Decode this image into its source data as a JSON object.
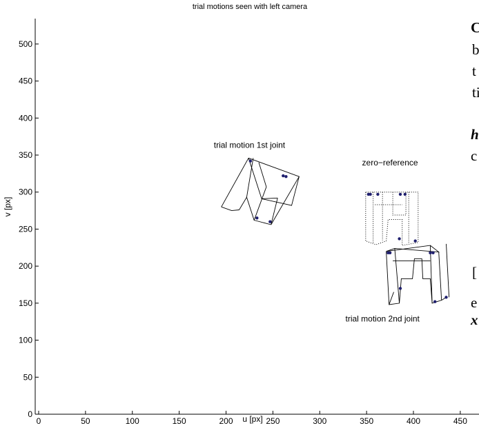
{
  "chart_data": {
    "type": "line",
    "title": "trial motions seen with left camera",
    "xlabel": "u [px]",
    "ylabel": "v [px]",
    "xlim": [
      0,
      460
    ],
    "ylim": [
      0,
      510
    ],
    "xticks": [
      0,
      50,
      100,
      150,
      200,
      250,
      300,
      350,
      400,
      450
    ],
    "yticks": [
      0,
      50,
      100,
      150,
      200,
      250,
      300,
      350,
      400,
      450,
      500
    ],
    "grid": false,
    "annotations": [
      {
        "text": "trial motion 1st joint",
        "x": 225,
        "y": 360
      },
      {
        "text": "zero−reference",
        "x": 375,
        "y": 336
      },
      {
        "text": "trial motion 2nd joint",
        "x": 367,
        "y": 125
      }
    ],
    "series": [
      {
        "style": "solid",
        "lines": [
          [
            [
              224,
              346
            ],
            [
              278,
              321
            ],
            [
              270,
              282
            ],
            [
              238,
              291
            ],
            [
              224,
              346
            ]
          ],
          [
            [
              229,
              346
            ],
            [
              222,
              293
            ],
            [
              214,
              276
            ]
          ],
          [
            [
              195,
              280
            ],
            [
              206,
              275
            ],
            [
              214,
              276
            ]
          ],
          [
            [
              195,
              280
            ],
            [
              224,
              346
            ]
          ],
          [
            [
              222,
              293
            ],
            [
              230,
              262
            ]
          ],
          [
            [
              243,
              307
            ],
            [
              230,
              262
            ],
            [
              248,
              256
            ]
          ],
          [
            [
              255,
              292
            ],
            [
              248,
              256
            ]
          ],
          [
            [
              248,
              256
            ],
            [
              278,
              321
            ]
          ],
          [
            [
              238,
              291
            ],
            [
              255,
              292
            ]
          ],
          [
            [
              235,
              340
            ],
            [
              243,
              307
            ]
          ]
        ],
        "points": [
          [
            226,
            342
          ],
          [
            261,
            322
          ],
          [
            264,
            321
          ],
          [
            233,
            265
          ],
          [
            247,
            260
          ]
        ]
      },
      {
        "style": "dotted",
        "lines": [
          [
            [
              349,
              300
            ],
            [
              405,
              300
            ],
            [
              405,
              232
            ],
            [
              388,
              228
            ],
            [
              388,
              263
            ],
            [
              373,
              263
            ],
            [
              371,
              234
            ],
            [
              360,
              229
            ],
            [
              349,
              234
            ],
            [
              349,
              300
            ]
          ],
          [
            [
              357,
              300
            ],
            [
              357,
              231
            ]
          ],
          [
            [
              378,
              300
            ],
            [
              378,
              269
            ],
            [
              392,
              269
            ],
            [
              392,
              300
            ]
          ],
          [
            [
              359,
              283
            ],
            [
              378,
              283
            ],
            [
              388,
              283
            ]
          ],
          [
            [
              395,
              300
            ],
            [
              395,
              232
            ]
          ],
          [
            [
              367,
              300
            ],
            [
              367,
              235
            ]
          ]
        ],
        "points": [
          [
            352,
            297
          ],
          [
            354,
            297
          ],
          [
            362,
            297
          ],
          [
            386,
            297
          ],
          [
            391,
            297
          ],
          [
            385,
            237
          ],
          [
            402,
            234
          ]
        ]
      },
      {
        "style": "solid",
        "lines": [
          [
            [
              371,
              220
            ],
            [
              418,
              228
            ],
            [
              427,
              219
            ],
            [
              380,
              224
            ],
            [
              371,
              220
            ]
          ],
          [
            [
              371,
              220
            ],
            [
              374,
              148
            ],
            [
              385,
              150
            ],
            [
              387,
              183
            ],
            [
              399,
              183
            ],
            [
              401,
              210
            ],
            [
              409,
              210
            ],
            [
              410,
              183
            ],
            [
              418,
              183
            ],
            [
              420,
              150
            ],
            [
              430,
              154
            ],
            [
              427,
              219
            ]
          ],
          [
            [
              418,
              228
            ],
            [
              420,
              150
            ]
          ],
          [
            [
              380,
              224
            ],
            [
              385,
              150
            ]
          ],
          [
            [
              378,
              207
            ],
            [
              418,
              207
            ]
          ],
          [
            [
              374,
              148
            ],
            [
              379,
              165
            ]
          ],
          [
            [
              430,
              154
            ],
            [
              434,
              157
            ]
          ],
          [
            [
              435,
              230
            ],
            [
              438,
              158
            ]
          ]
        ],
        "points": [
          [
            373,
            218
          ],
          [
            375,
            218
          ],
          [
            418,
            218
          ],
          [
            421,
            218
          ],
          [
            386,
            170
          ],
          [
            423,
            152
          ],
          [
            435,
            158
          ]
        ]
      }
    ]
  },
  "page_fragments": {
    "right_bold_letter": "C",
    "right_lines": [
      "b",
      "t",
      "ti",
      "c",
      "h"
    ],
    "bracket": "[",
    "e_char": "e",
    "x_char": "x"
  },
  "colors": {
    "axis": "#000000",
    "marker": "#1f1f6e"
  }
}
